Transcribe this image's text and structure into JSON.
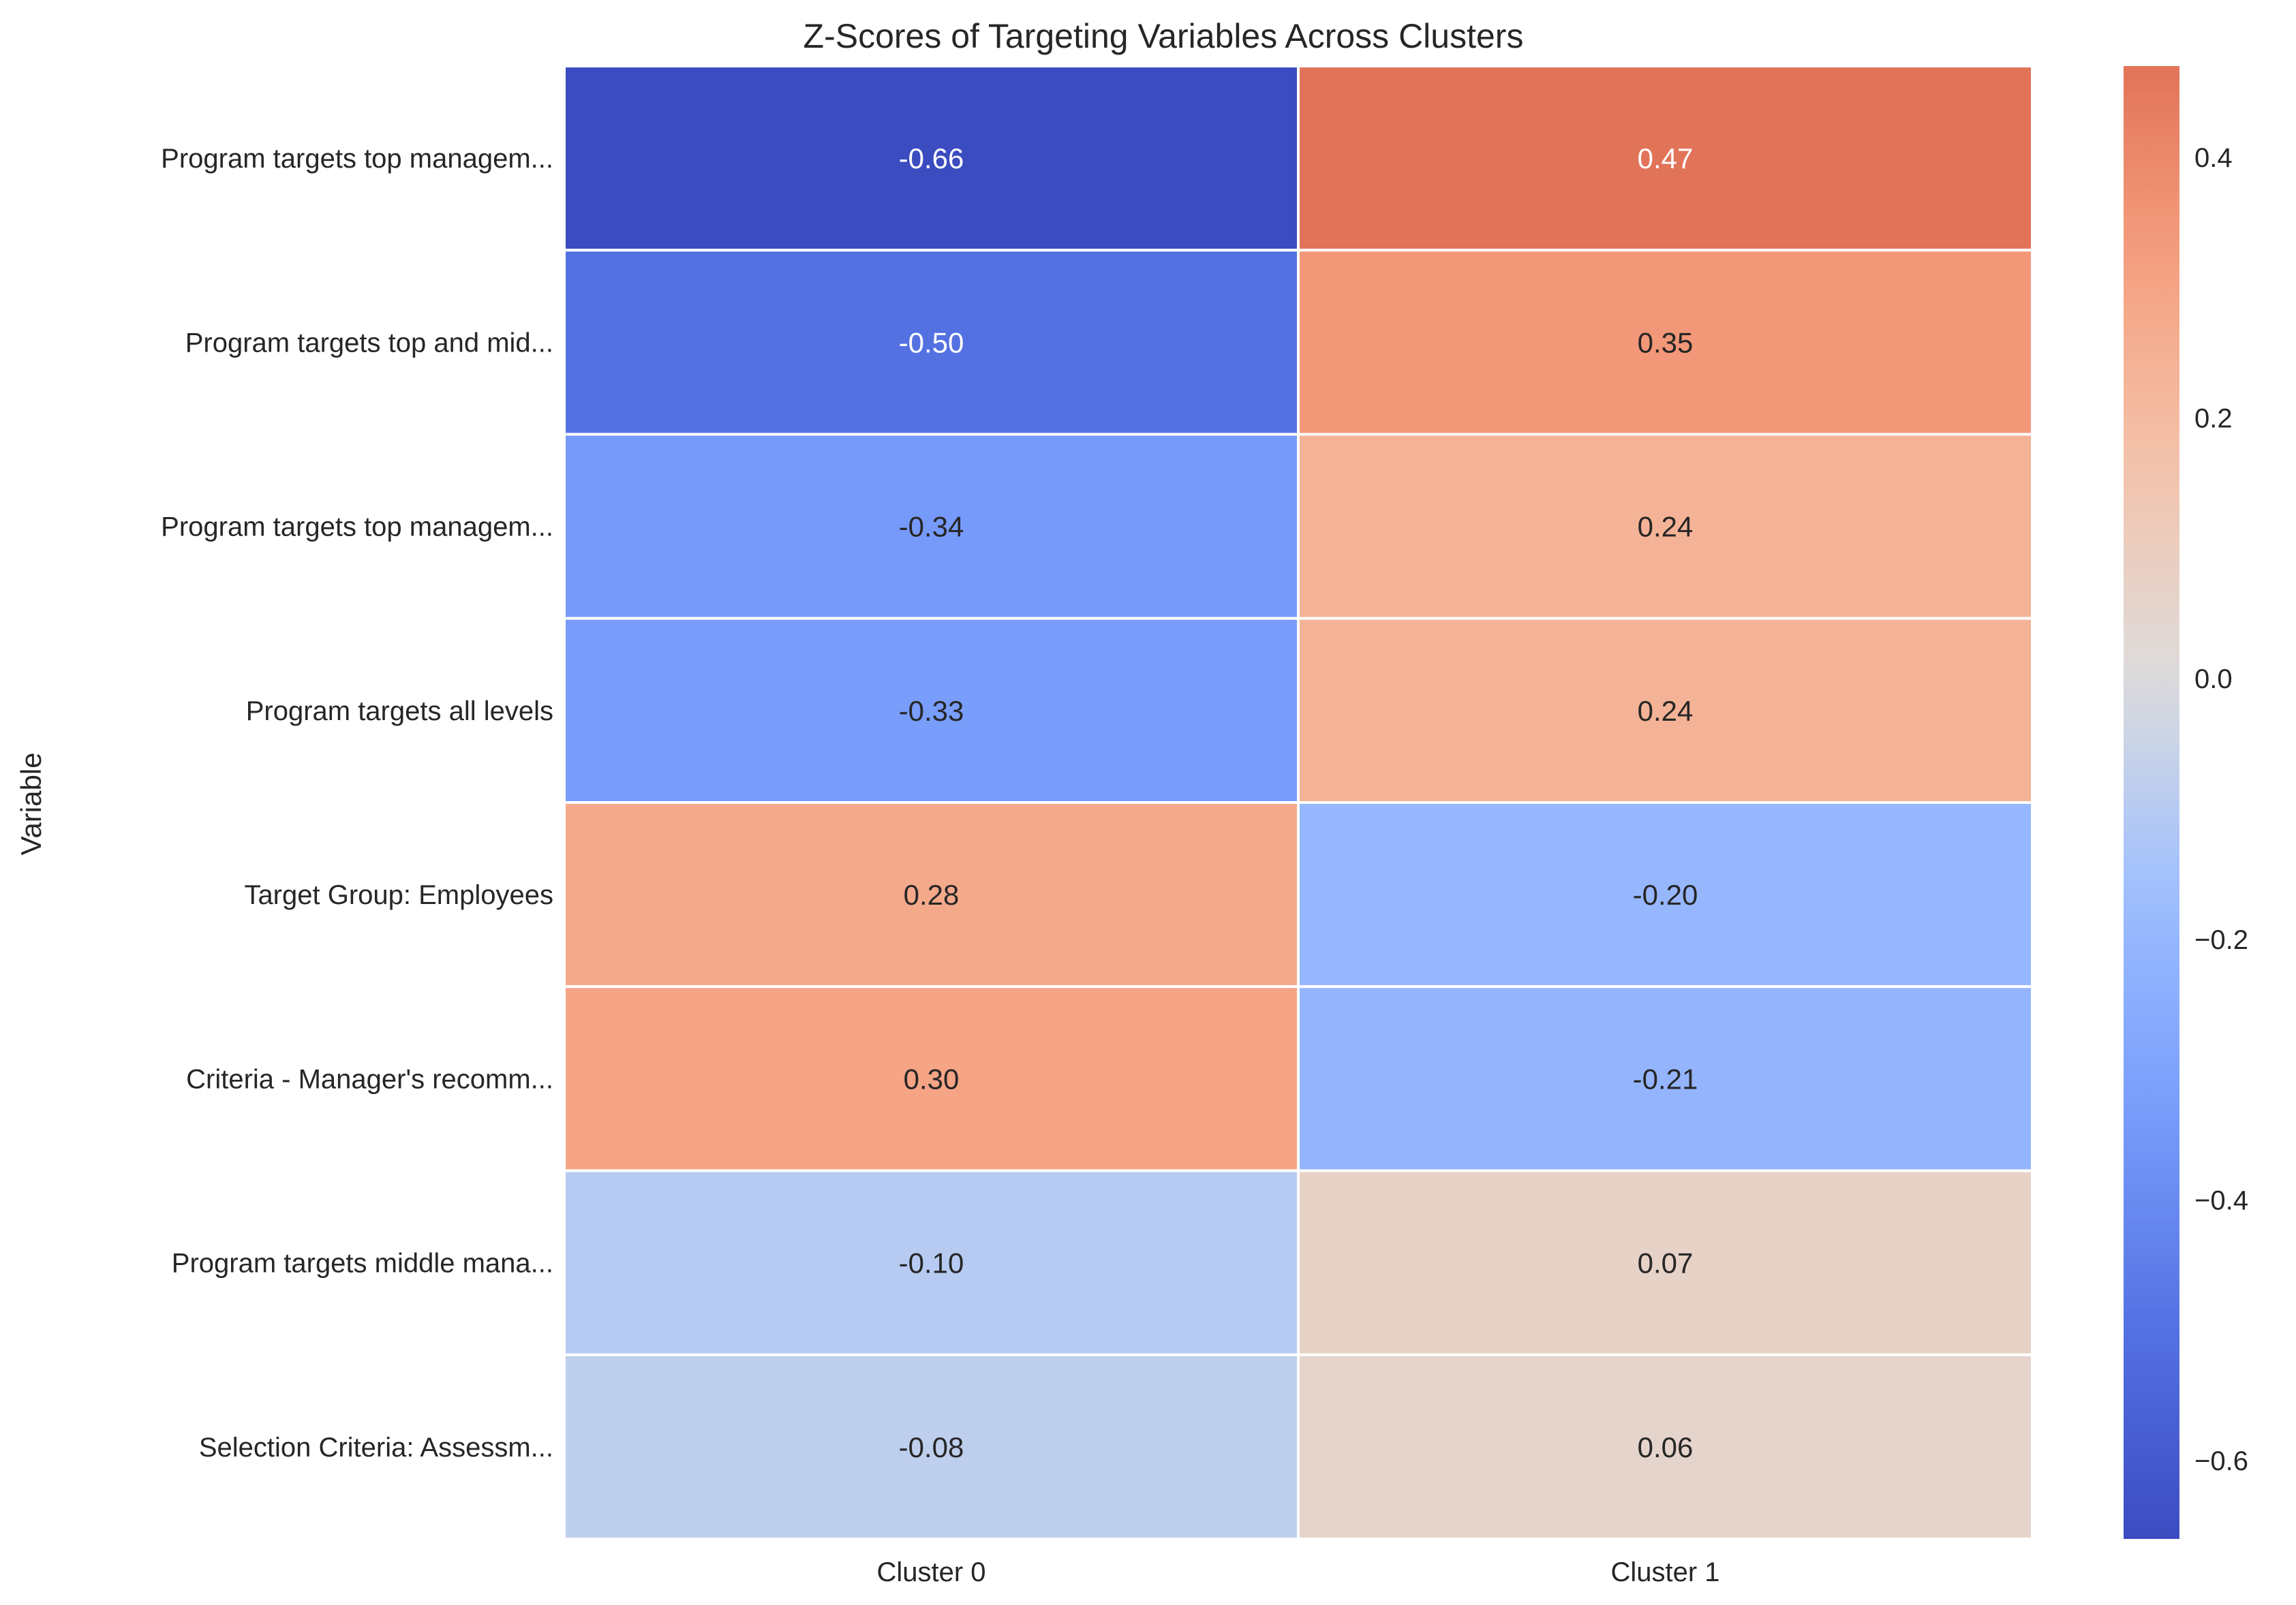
{
  "chart_data": {
    "type": "heatmap",
    "title": "Z-Scores of Targeting Variables Across Clusters",
    "xlabel": "",
    "ylabel": "Variable",
    "columns": [
      "Cluster 0",
      "Cluster 1"
    ],
    "rows": [
      "Program targets top managem...",
      "Program targets top and mid...",
      "Program targets top managem...",
      "Program targets all levels",
      "Target Group: Employees",
      "Criteria - Manager's recomm...",
      "Program targets middle mana...",
      "Selection Criteria: Assessm..."
    ],
    "values": [
      [
        -0.66,
        0.47
      ],
      [
        -0.5,
        0.35
      ],
      [
        -0.34,
        0.24
      ],
      [
        -0.33,
        0.24
      ],
      [
        0.28,
        -0.2
      ],
      [
        0.3,
        -0.21
      ],
      [
        -0.1,
        0.07
      ],
      [
        -0.08,
        0.06
      ]
    ],
    "cell_labels": [
      [
        "-0.66",
        "0.47"
      ],
      [
        "-0.50",
        "0.35"
      ],
      [
        "-0.34",
        "0.24"
      ],
      [
        "-0.33",
        "0.24"
      ],
      [
        "0.28",
        "-0.20"
      ],
      [
        "0.30",
        "-0.21"
      ],
      [
        "-0.10",
        "0.07"
      ],
      [
        "-0.08",
        "0.06"
      ]
    ],
    "colormap": "coolwarm",
    "vmin": -0.66,
    "vmax": 0.47,
    "colorbar_ticks": [
      0.4,
      0.2,
      0.0,
      -0.2,
      -0.4,
      -0.6
    ],
    "colorbar_tick_labels": [
      "0.4",
      "0.2",
      "0.0",
      "−0.2",
      "−0.4",
      "−0.6"
    ],
    "grid": false,
    "legend": "colorbar-right"
  }
}
